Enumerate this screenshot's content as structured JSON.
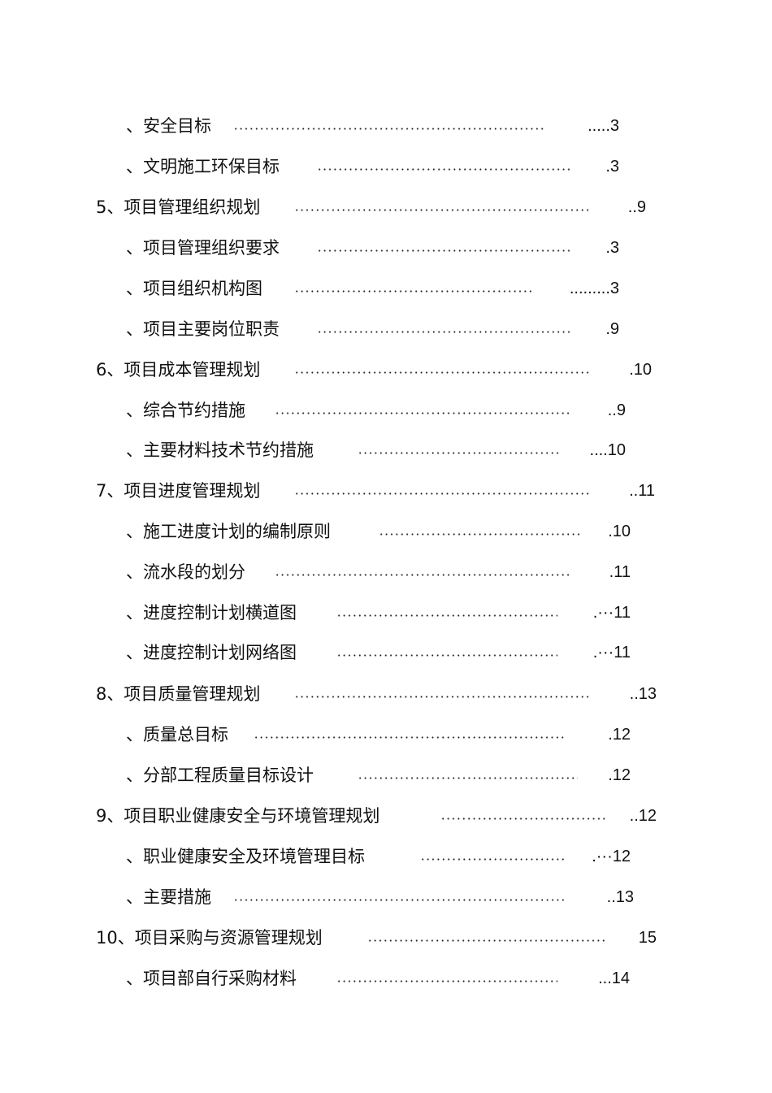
{
  "toc": [
    {
      "title": "、安全目标",
      "page": ".....3"
    },
    {
      "title": "、文明施工环保目标",
      "page": ".3"
    },
    {
      "title": "5、项目管理组织规划",
      "page": "..9"
    },
    {
      "title": "、项目管理组织要求",
      "page": ".3"
    },
    {
      "title": "、项目组织机构图",
      "page": ".........3"
    },
    {
      "title": "、项目主要岗位职责",
      "page": ".9"
    },
    {
      "title": "6、项目成本管理规划",
      "page": ".10"
    },
    {
      "title": "、综合节约措施",
      "page": "..9"
    },
    {
      "title": "、主要材料技术节约措施",
      "page": "....10"
    },
    {
      "title": "7、项目进度管理规划",
      "page": "..11"
    },
    {
      "title": "、施工进度计划的编制原则",
      "page": ".10"
    },
    {
      "title": "、流水段的划分",
      "page": ".11"
    },
    {
      "title": "、进度控制计划横道图",
      "page": ".···11"
    },
    {
      "title": "、进度控制计划网络图",
      "page": ".···11"
    },
    {
      "title": "8、项目质量管理规划",
      "page": "..13"
    },
    {
      "title": "、质量总目标",
      "page": ".12"
    },
    {
      "title": "、分部工程质量目标设计",
      "page": ".12"
    },
    {
      "title": "9、项目职业健康安全与环境管理规划",
      "page": "..12"
    },
    {
      "title": "、职业健康安全及环境管理目标",
      "page": ".···12"
    },
    {
      "title": "、主要措施",
      "page": "..13"
    },
    {
      "title": "10、项目采购与资源管理规划",
      "page": "15"
    },
    {
      "title": "、项目部自行采购材料",
      "page": "...14"
    }
  ]
}
